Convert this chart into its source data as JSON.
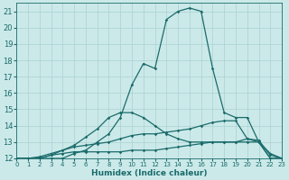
{
  "xlabel": "Humidex (Indice chaleur)",
  "background_color": "#cce9e9",
  "grid_color": "#aad0d0",
  "line_color": "#1a6b6b",
  "xlim": [
    0,
    23
  ],
  "ylim": [
    12,
    21.5
  ],
  "xticks": [
    0,
    1,
    2,
    3,
    4,
    5,
    6,
    7,
    8,
    9,
    10,
    11,
    12,
    13,
    14,
    15,
    16,
    17,
    18,
    19,
    20,
    21,
    22,
    23
  ],
  "yticks": [
    12,
    13,
    14,
    15,
    16,
    17,
    18,
    19,
    20,
    21
  ],
  "lines": [
    {
      "x": [
        0,
        1,
        2,
        3,
        4,
        5,
        6,
        7,
        8,
        9,
        10,
        11,
        12,
        13,
        14,
        15,
        16,
        17,
        18,
        19,
        20,
        21,
        22,
        23
      ],
      "y": [
        12,
        12,
        12,
        12.2,
        12.3,
        12.4,
        12.4,
        12.4,
        12.4,
        12.4,
        12.5,
        12.5,
        12.5,
        12.6,
        12.7,
        12.8,
        12.9,
        13.0,
        13.0,
        13.0,
        13.0,
        13.0,
        12.3,
        12
      ]
    },
    {
      "x": [
        0,
        1,
        2,
        3,
        4,
        5,
        6,
        7,
        8,
        9,
        10,
        11,
        12,
        13,
        14,
        15,
        16,
        17,
        18,
        19,
        20,
        21,
        22,
        23
      ],
      "y": [
        12,
        12,
        12.1,
        12.3,
        12.5,
        12.7,
        12.8,
        12.9,
        13.0,
        13.2,
        13.4,
        13.5,
        13.5,
        13.6,
        13.7,
        13.8,
        14.0,
        14.2,
        14.3,
        14.3,
        13.2,
        13.1,
        12.2,
        12
      ]
    },
    {
      "x": [
        0,
        1,
        2,
        3,
        4,
        5,
        6,
        7,
        8,
        9,
        10,
        11,
        12,
        13,
        14,
        15,
        16,
        17,
        18,
        19,
        20,
        21,
        22,
        23
      ],
      "y": [
        12,
        12,
        12,
        12.2,
        12.5,
        12.8,
        13.3,
        13.8,
        14.5,
        14.8,
        14.8,
        14.5,
        14.0,
        13.5,
        13.2,
        13.0,
        13.0,
        13.0,
        13.0,
        13.0,
        13.2,
        13.0,
        12.0,
        12
      ]
    },
    {
      "x": [
        0,
        1,
        2,
        3,
        4,
        5,
        6,
        7,
        8,
        9,
        10,
        11,
        12,
        13,
        14,
        15,
        16,
        17,
        18,
        19,
        20,
        21,
        22,
        23
      ],
      "y": [
        12,
        12,
        12,
        12,
        12,
        12.3,
        12.5,
        13.0,
        13.5,
        14.5,
        16.5,
        17.8,
        17.5,
        20.5,
        21.0,
        21.2,
        21.0,
        17.5,
        14.8,
        14.5,
        14.5,
        13.0,
        12.0,
        12
      ]
    }
  ]
}
